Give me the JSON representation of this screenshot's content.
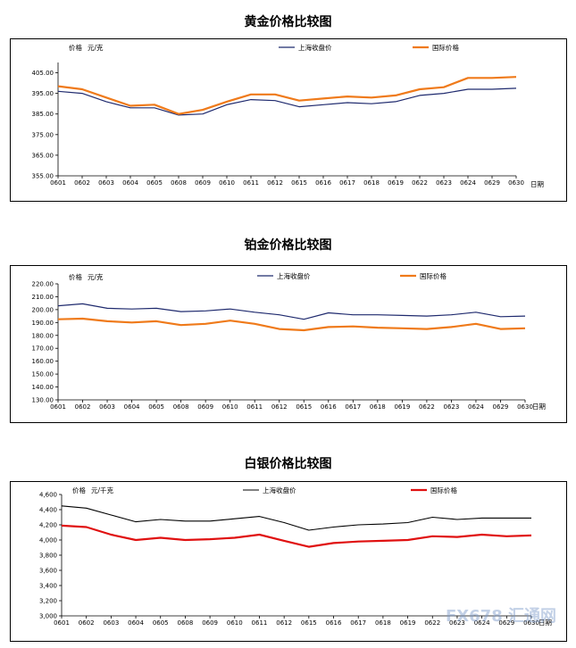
{
  "watermark": "FX678 汇通网",
  "chart_data": [
    {
      "type": "line",
      "title": "黄金价格比较图",
      "ylabel": "价格",
      "unit": "元/克",
      "xlabel": "日期",
      "ylim": [
        355,
        410
      ],
      "yticks": [
        "355.00",
        "365.00",
        "375.00",
        "385.00",
        "395.00",
        "405.00"
      ],
      "ytick_values": [
        355,
        365,
        375,
        385,
        395,
        405
      ],
      "categories": [
        "0601",
        "0602",
        "0603",
        "0604",
        "0605",
        "0608",
        "0609",
        "0610",
        "0611",
        "0612",
        "0615",
        "0616",
        "0617",
        "0618",
        "0619",
        "0622",
        "0623",
        "0624",
        "0629",
        "0630"
      ],
      "series": [
        {
          "name": "上海收盘价",
          "color": "#1f2a6e",
          "width": 1.2,
          "values": [
            396,
            395,
            391,
            388,
            388,
            384.5,
            385,
            389.5,
            392,
            391.5,
            388.5,
            389.5,
            390.5,
            390,
            391,
            394,
            395,
            397,
            397,
            397.5
          ]
        },
        {
          "name": "国际价格",
          "color": "#ef7a1a",
          "width": 2.2,
          "values": [
            398.5,
            397,
            393,
            389,
            389.5,
            385,
            387,
            391,
            394.5,
            394.5,
            391.5,
            392.5,
            393.5,
            393,
            394,
            397,
            398,
            402.5,
            402.5,
            403
          ]
        }
      ]
    },
    {
      "type": "line",
      "title": "铂金价格比较图",
      "ylabel": "价格",
      "unit": "元/克",
      "xlabel": "日期",
      "ylim": [
        130,
        220
      ],
      "yticks": [
        "130.00",
        "140.00",
        "150.00",
        "160.00",
        "170.00",
        "180.00",
        "190.00",
        "200.00",
        "210.00",
        "220.00"
      ],
      "ytick_values": [
        130,
        140,
        150,
        160,
        170,
        180,
        190,
        200,
        210,
        220
      ],
      "categories": [
        "0601",
        "0602",
        "0603",
        "0604",
        "0605",
        "0608",
        "0609",
        "0610",
        "0611",
        "0612",
        "0615",
        "0616",
        "0617",
        "0618",
        "0619",
        "0622",
        "0623",
        "0624",
        "0629",
        "0630"
      ],
      "series": [
        {
          "name": "上海收盘价",
          "color": "#1f2a6e",
          "width": 1.2,
          "values": [
            203,
            204.5,
            201,
            200.5,
            201,
            198.5,
            199,
            200.5,
            198,
            196,
            192.5,
            197.5,
            196,
            196,
            195.5,
            195,
            196,
            198,
            194.5,
            195
          ]
        },
        {
          "name": "国际价格",
          "color": "#ef7a1a",
          "width": 2.2,
          "values": [
            192.5,
            193,
            191,
            190,
            191,
            188,
            189,
            191.5,
            189,
            185,
            184,
            186.5,
            187,
            186,
            185.5,
            185,
            186.5,
            189,
            185,
            185.5
          ]
        }
      ]
    },
    {
      "type": "line",
      "title": "白银价格比较图",
      "ylabel": "价格",
      "unit": "元/千克",
      "xlabel": "日期",
      "ylim": [
        3000,
        4600
      ],
      "yticks": [
        "3,000",
        "3,200",
        "3,400",
        "3,600",
        "3,800",
        "4,000",
        "4,200",
        "4,400",
        "4,600"
      ],
      "ytick_values": [
        3000,
        3200,
        3400,
        3600,
        3800,
        4000,
        4200,
        4400,
        4600
      ],
      "categories": [
        "0601",
        "0602",
        "0603",
        "0604",
        "0605",
        "0608",
        "0609",
        "0610",
        "0611",
        "0612",
        "0615",
        "0616",
        "0617",
        "0618",
        "0619",
        "0622",
        "0623",
        "0624",
        "0629",
        "0630"
      ],
      "series": [
        {
          "name": "上海收盘价",
          "color": "#000000",
          "width": 1.1,
          "values": [
            4450,
            4420,
            4330,
            4240,
            4270,
            4250,
            4250,
            4280,
            4310,
            4230,
            4130,
            4170,
            4200,
            4210,
            4230,
            4300,
            4270,
            4290,
            4290,
            4290
          ]
        },
        {
          "name": "国际价格",
          "color": "#e01010",
          "width": 2.2,
          "values": [
            4190,
            4170,
            4070,
            4000,
            4030,
            4000,
            4010,
            4030,
            4070,
            3990,
            3910,
            3960,
            3980,
            3990,
            4000,
            4050,
            4040,
            4070,
            4050,
            4060
          ]
        }
      ]
    }
  ]
}
